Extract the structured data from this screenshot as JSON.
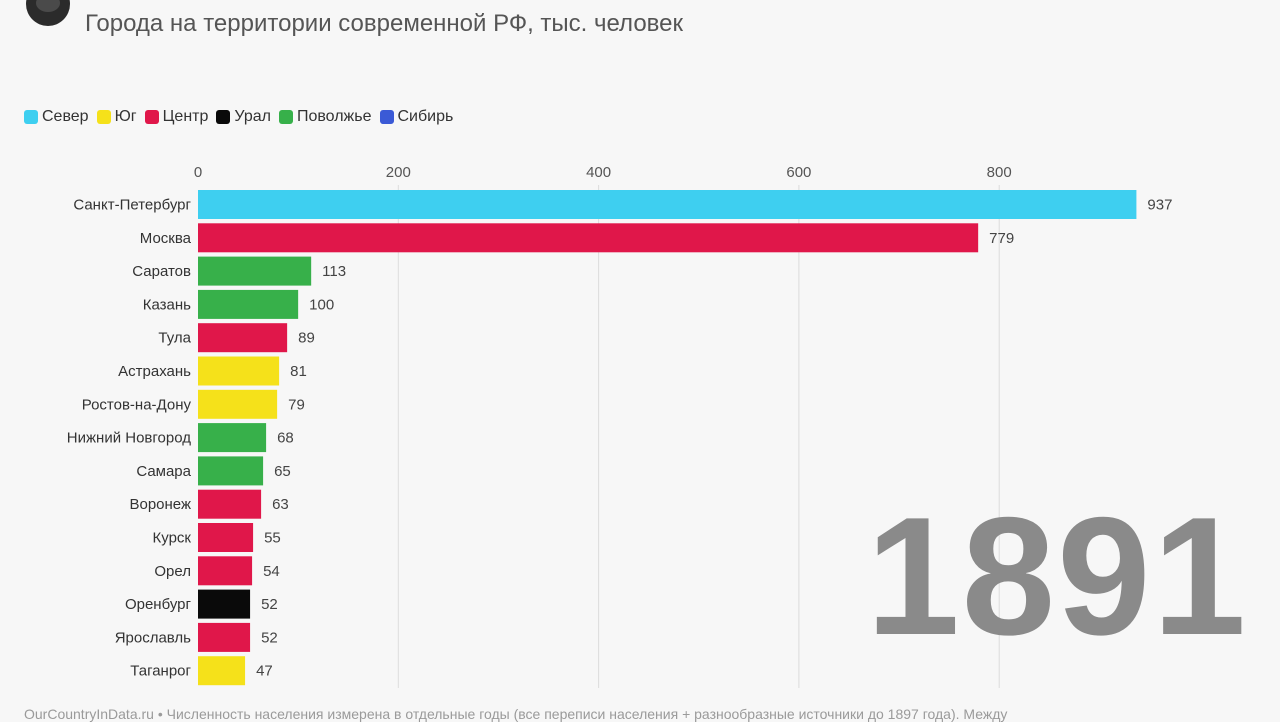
{
  "header": {
    "title": "",
    "subtitle": "Города на территории современной РФ, тыс. человек"
  },
  "legend": [
    {
      "label": "Север",
      "color": "#3ecff0"
    },
    {
      "label": "Юг",
      "color": "#f5e11a"
    },
    {
      "label": "Центр",
      "color": "#e0174a"
    },
    {
      "label": "Урал",
      "color": "#0a0a0a"
    },
    {
      "label": "Поволжье",
      "color": "#37b04a"
    },
    {
      "label": "Сибирь",
      "color": "#3b5ad6"
    }
  ],
  "year": "1891",
  "footer": {
    "text": "OurCountryInData.ru • Численность населения измерена в отдельные годы (все переписи населения + разнообразные источники до 1897 года). Между"
  },
  "chart_data": {
    "type": "bar",
    "orientation": "horizontal",
    "title": "",
    "subtitle": "Города на территории современной РФ, тыс. человек",
    "xlim": [
      0,
      937
    ],
    "x_ticks": [
      0,
      200,
      400,
      600,
      800
    ],
    "grid": true,
    "legend_position": "top-left",
    "categories": [
      "Санкт-Петербург",
      "Москва",
      "Саратов",
      "Казань",
      "Тула",
      "Астрахань",
      "Ростов-на-Дону",
      "Нижний Новгород",
      "Самара",
      "Воронеж",
      "Курск",
      "Орел",
      "Оренбург",
      "Ярославль",
      "Таганрог"
    ],
    "values": [
      937,
      779,
      113,
      100,
      89,
      81,
      79,
      68,
      65,
      63,
      55,
      54,
      52,
      52,
      47
    ],
    "regions": [
      "Север",
      "Центр",
      "Поволжье",
      "Поволжье",
      "Центр",
      "Юг",
      "Юг",
      "Поволжье",
      "Поволжье",
      "Центр",
      "Центр",
      "Центр",
      "Урал",
      "Центр",
      "Юг"
    ]
  }
}
